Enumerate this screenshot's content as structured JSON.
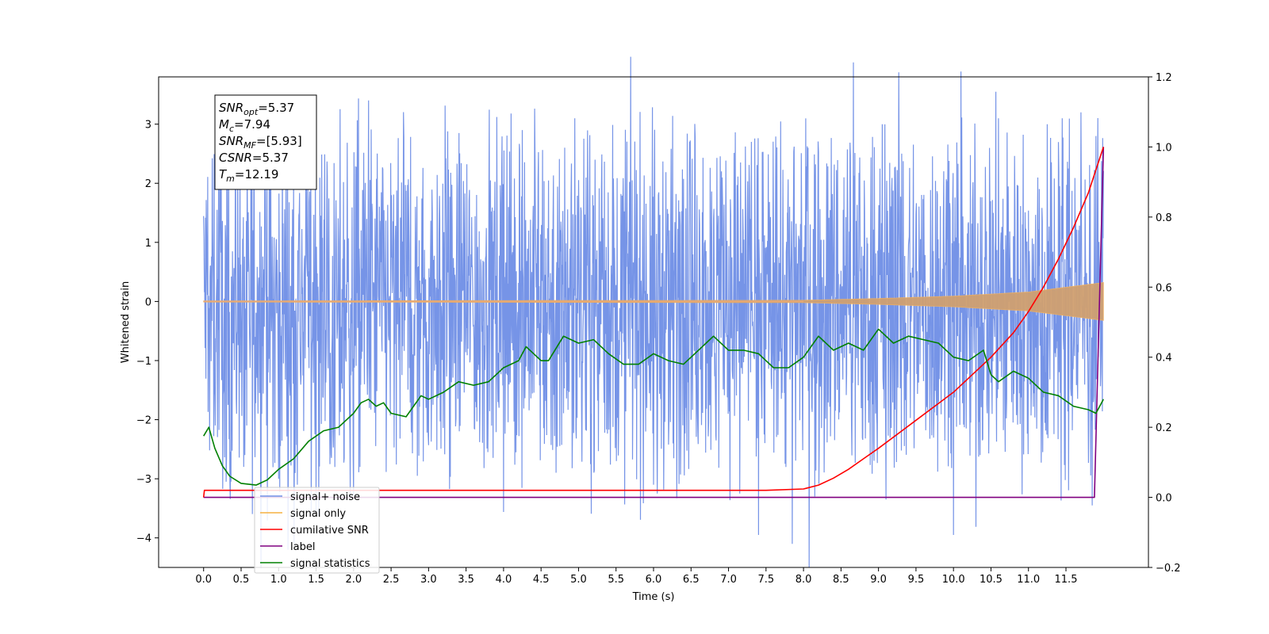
{
  "chart_data": {
    "type": "line",
    "title": "",
    "xlabel": "Time (s)",
    "ylabel": "Whitened strain",
    "xlim": [
      -0.6,
      12.6
    ],
    "ylim": [
      -4.5,
      3.8
    ],
    "y2lim": [
      -0.2,
      1.2
    ],
    "x_ticks": [
      "0.0",
      "0.5",
      "1.0",
      "1.5",
      "2.0",
      "2.5",
      "3.0",
      "3.5",
      "4.0",
      "4.5",
      "5.0",
      "5.5",
      "6.0",
      "6.5",
      "7.0",
      "7.5",
      "8.0",
      "8.5",
      "9.0",
      "9.5",
      "10.0",
      "10.5",
      "11.0",
      "11.5"
    ],
    "y_ticks": [
      "3",
      "2",
      "1",
      "0",
      "−1",
      "−2",
      "−3",
      "−4"
    ],
    "y2_ticks": [
      "1.2",
      "1.0",
      "0.8",
      "0.6",
      "0.4",
      "0.2",
      "0.0",
      "−0.2"
    ],
    "grid": false,
    "legend_position": "lower-left",
    "annotation": {
      "lines": [
        {
          "sym": "SNR",
          "sub": "opt",
          "val": "=5.37"
        },
        {
          "sym": "M",
          "sub": "c",
          "val": "=7.94"
        },
        {
          "sym": "SNR",
          "sub": "MF",
          "val": "=[5.93]"
        },
        {
          "sym": "CSNR",
          "sub": "",
          "val": "=5.37"
        },
        {
          "sym": "T",
          "sub": "m",
          "val": "=12.19"
        }
      ]
    },
    "legend": [
      {
        "name": "signal+ noise",
        "color": "#6f8ee6"
      },
      {
        "name": "signal only",
        "color": "#f5b041"
      },
      {
        "name": "cumilative SNR",
        "color": "#ff0000"
      },
      {
        "name": "label",
        "color": "#800080"
      },
      {
        "name": "signal statistics",
        "color": "#008000"
      }
    ],
    "series": [
      {
        "name": "signal+ noise",
        "axis": "left",
        "color": "#6f8ee6",
        "x_start": 0.0,
        "x_end": 12.0,
        "band_center": 0.0,
        "band_halfwidth": 1.9,
        "peaks": [
          {
            "x": 0.35,
            "y": -3.0
          },
          {
            "x": 0.55,
            "y": -2.6
          },
          {
            "x": 1.0,
            "y": -3.0
          },
          {
            "x": 1.25,
            "y": -3.1
          },
          {
            "x": 1.75,
            "y": -2.8
          },
          {
            "x": 2.0,
            "y": -3.3
          },
          {
            "x": 2.2,
            "y": 3.4
          },
          {
            "x": 2.85,
            "y": -2.95
          },
          {
            "x": 4.25,
            "y": 2.9
          },
          {
            "x": 4.95,
            "y": 3.1
          },
          {
            "x": 6.0,
            "y": -3.1
          },
          {
            "x": 6.05,
            "y": -3.25
          },
          {
            "x": 7.15,
            "y": -3.25
          },
          {
            "x": 7.4,
            "y": -3.95
          },
          {
            "x": 7.85,
            "y": -4.1
          },
          {
            "x": 8.15,
            "y": -3.3
          },
          {
            "x": 9.1,
            "y": -3.35
          },
          {
            "x": 9.05,
            "y": 3.0
          },
          {
            "x": 10.0,
            "y": -3.95
          },
          {
            "x": 10.6,
            "y": 3.1
          },
          {
            "x": 11.25,
            "y": 3.0
          },
          {
            "x": 11.45,
            "y": 3.1
          },
          {
            "x": 11.85,
            "y": -3.45
          },
          {
            "x": 11.9,
            "y": 2.8
          },
          {
            "x": 11.7,
            "y": 3.2
          }
        ]
      },
      {
        "name": "signal only",
        "axis": "left",
        "color": "#f5b041",
        "x_start": 0.0,
        "x_end": 12.0,
        "envelope": [
          [
            0.0,
            0.01
          ],
          [
            8.0,
            0.02
          ],
          [
            9.0,
            0.05
          ],
          [
            10.0,
            0.09
          ],
          [
            11.0,
            0.16
          ],
          [
            12.0,
            0.32
          ]
        ]
      },
      {
        "name": "cumilative SNR",
        "axis": "right",
        "color": "#ff0000",
        "x": [
          0.0,
          0.01,
          0.5,
          1.0,
          2.0,
          3.0,
          4.0,
          5.0,
          6.0,
          7.0,
          7.5,
          8.0,
          8.2,
          8.4,
          8.6,
          8.8,
          9.0,
          9.5,
          10.0,
          10.5,
          10.8,
          11.0,
          11.2,
          11.4,
          11.6,
          11.8,
          12.0
        ],
        "y": [
          0.0,
          0.02,
          0.02,
          0.02,
          0.02,
          0.02,
          0.02,
          0.02,
          0.02,
          0.02,
          0.02,
          0.024,
          0.035,
          0.055,
          0.08,
          0.11,
          0.14,
          0.22,
          0.3,
          0.4,
          0.47,
          0.53,
          0.6,
          0.68,
          0.77,
          0.87,
          1.0
        ]
      },
      {
        "name": "label",
        "axis": "right",
        "color": "#800080",
        "x": [
          0.0,
          11.88,
          12.0
        ],
        "y": [
          0.0,
          0.0,
          1.0
        ]
      },
      {
        "name": "signal statistics",
        "axis": "right",
        "color": "#008000",
        "x": [
          0.0,
          0.07,
          0.15,
          0.25,
          0.35,
          0.5,
          0.7,
          0.85,
          1.0,
          1.2,
          1.4,
          1.6,
          1.8,
          2.0,
          2.1,
          2.2,
          2.3,
          2.4,
          2.5,
          2.7,
          2.9,
          3.0,
          3.2,
          3.4,
          3.6,
          3.8,
          4.0,
          4.2,
          4.3,
          4.5,
          4.6,
          4.8,
          5.0,
          5.2,
          5.4,
          5.6,
          5.8,
          6.0,
          6.2,
          6.4,
          6.6,
          6.8,
          7.0,
          7.2,
          7.4,
          7.6,
          7.8,
          8.0,
          8.2,
          8.4,
          8.6,
          8.8,
          9.0,
          9.2,
          9.4,
          9.6,
          9.8,
          10.0,
          10.2,
          10.4,
          10.5,
          10.6,
          10.8,
          11.0,
          11.2,
          11.4,
          11.6,
          11.8,
          11.9,
          12.0
        ],
        "y": [
          0.175,
          0.2,
          0.14,
          0.09,
          0.06,
          0.04,
          0.035,
          0.05,
          0.08,
          0.11,
          0.16,
          0.19,
          0.2,
          0.24,
          0.27,
          0.28,
          0.26,
          0.27,
          0.24,
          0.23,
          0.29,
          0.28,
          0.3,
          0.33,
          0.32,
          0.33,
          0.37,
          0.39,
          0.43,
          0.39,
          0.39,
          0.46,
          0.44,
          0.45,
          0.41,
          0.38,
          0.38,
          0.41,
          0.39,
          0.38,
          0.42,
          0.46,
          0.42,
          0.42,
          0.41,
          0.37,
          0.37,
          0.4,
          0.46,
          0.42,
          0.44,
          0.42,
          0.48,
          0.44,
          0.46,
          0.45,
          0.44,
          0.4,
          0.39,
          0.42,
          0.35,
          0.33,
          0.36,
          0.34,
          0.3,
          0.29,
          0.26,
          0.25,
          0.24,
          0.28
        ]
      }
    ]
  }
}
